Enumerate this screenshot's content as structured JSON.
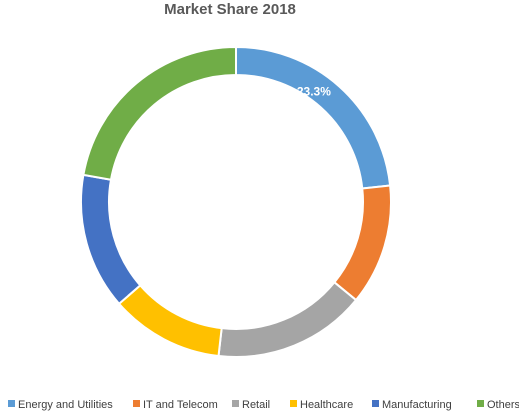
{
  "chart_data": {
    "type": "pie",
    "title": "Market Share 2018",
    "categories": [
      "Energy and Utilities",
      "IT and Telecom",
      "Retail",
      "Healthcare",
      "Manufacturing",
      "Others"
    ],
    "values": [
      23.3,
      12.6,
      15.9,
      11.8,
      14.2,
      22.2
    ],
    "colors": [
      "#5b9bd5",
      "#ed7d31",
      "#a5a5a5",
      "#ffc000",
      "#4472c4",
      "#70ad47"
    ],
    "data_labels": [
      "23.3%",
      null,
      null,
      null,
      null,
      null
    ],
    "donut": true,
    "legend_position": "bottom"
  }
}
